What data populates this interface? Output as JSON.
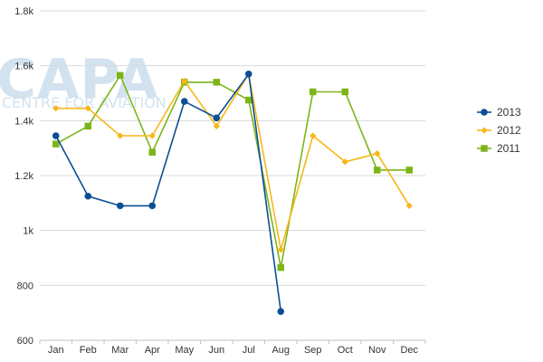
{
  "watermark": {
    "brand": "CAPA",
    "subtitle": "CENTRE FOR AVIATION"
  },
  "chart_data": {
    "type": "line",
    "title": "",
    "xlabel": "",
    "ylabel": "",
    "categories": [
      "Jan",
      "Feb",
      "Mar",
      "Apr",
      "May",
      "Jun",
      "Jul",
      "Aug",
      "Sep",
      "Oct",
      "Nov",
      "Dec"
    ],
    "ylim": [
      600,
      1800
    ],
    "y_ticks": [
      600,
      800,
      1000,
      1200,
      1400,
      1600,
      1800
    ],
    "y_tick_labels": [
      "600",
      "800",
      "1k",
      "1.2k",
      "1.4k",
      "1.6k",
      "1.8k"
    ],
    "grid": true,
    "legend_position": "right",
    "series": [
      {
        "name": "2013",
        "color": "#0b4f94",
        "marker": "circle",
        "values": [
          1345,
          1125,
          1090,
          1090,
          1470,
          1410,
          1570,
          705,
          null,
          null,
          null,
          null
        ]
      },
      {
        "name": "2012",
        "color": "#f7b719",
        "marker": "diamond",
        "values": [
          1445,
          1445,
          1345,
          1345,
          1545,
          1380,
          1570,
          930,
          1345,
          1250,
          1280,
          1090
        ]
      },
      {
        "name": "2011",
        "color": "#7cb518",
        "marker": "square",
        "values": [
          1315,
          1380,
          1565,
          1285,
          1540,
          1540,
          1475,
          865,
          1505,
          1505,
          1220,
          1220
        ]
      }
    ]
  }
}
